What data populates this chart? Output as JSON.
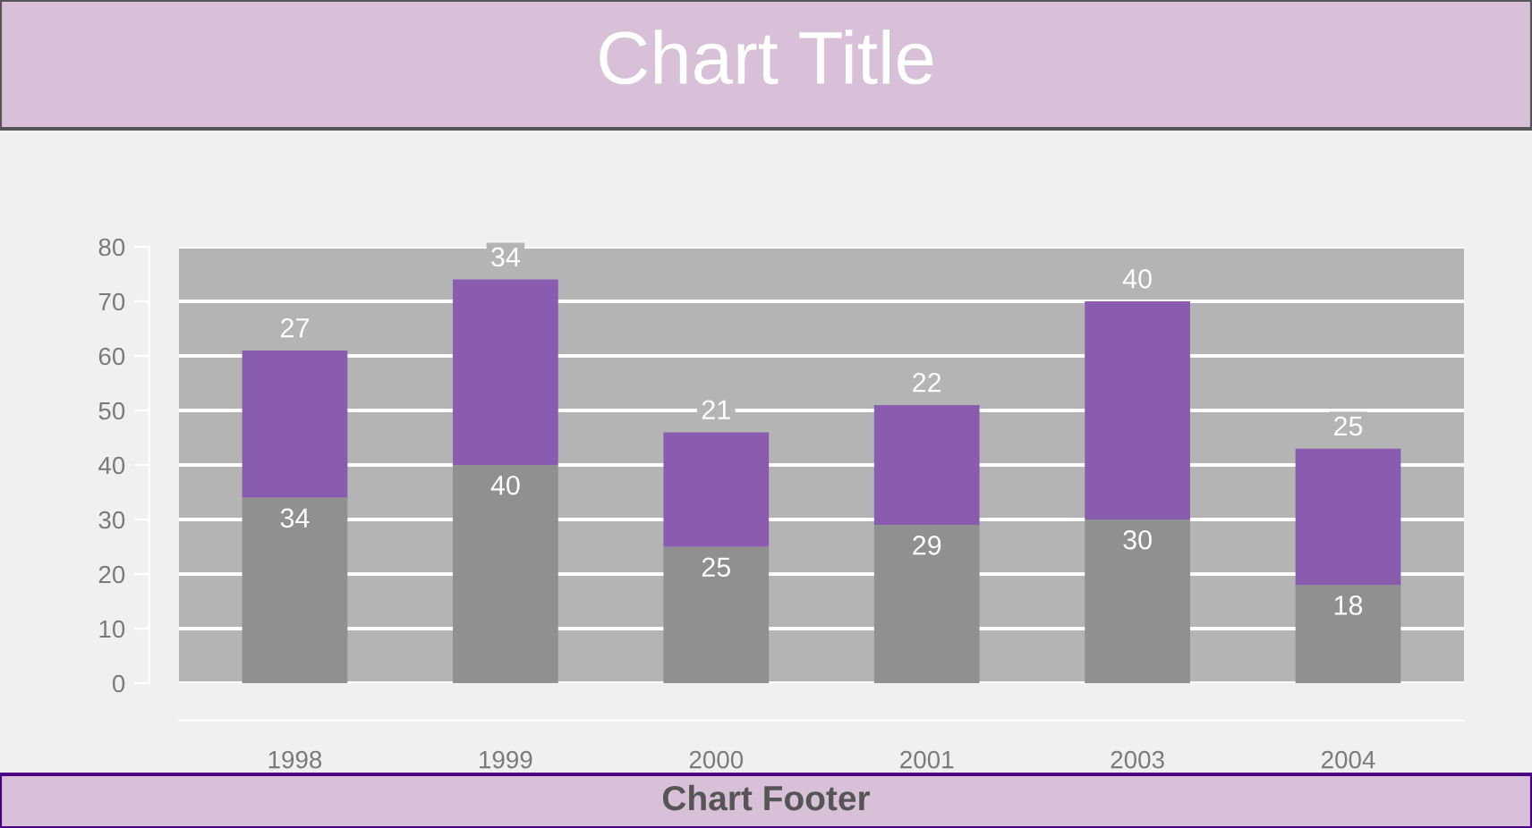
{
  "chart_data": {
    "type": "bar",
    "title": "Chart Title",
    "annotations": [
      "Chart Footer"
    ],
    "categories": [
      "1998",
      "1999",
      "2000",
      "2001",
      "2003",
      "2004"
    ],
    "series": [
      {
        "color": "#909090",
        "values": [
          34,
          40,
          25,
          29,
          30,
          18
        ]
      },
      {
        "color": "#8a5cb0",
        "values": [
          27,
          34,
          21,
          22,
          40,
          25
        ]
      }
    ],
    "stacked": true,
    "data_labels": true,
    "ylim": [
      0,
      80
    ],
    "yticks": [
      0,
      10,
      20,
      30,
      40,
      50,
      60,
      70,
      80
    ],
    "grid": "y",
    "legend": false
  }
}
